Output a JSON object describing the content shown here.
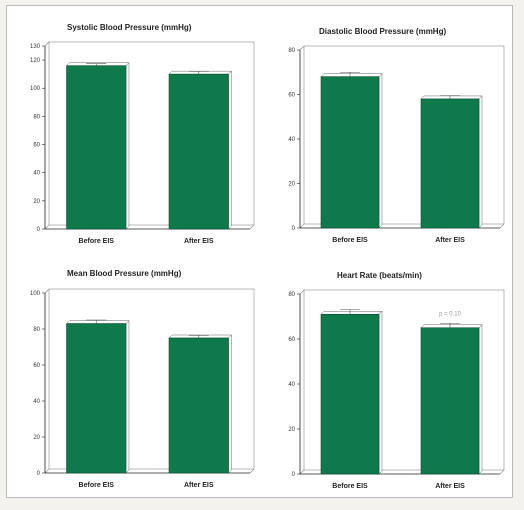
{
  "chart_data": [
    {
      "type": "bar",
      "title": "Systolic Blood Pressure (mmHg)",
      "categories": [
        "Before EIS",
        "After EIS"
      ],
      "values": [
        116,
        110
      ],
      "errors": [
        1.5,
        2
      ],
      "ylim": [
        0,
        130
      ],
      "yticks": [
        0,
        20,
        40,
        60,
        80,
        100,
        120,
        130
      ],
      "color": "#0e7a4c"
    },
    {
      "type": "bar",
      "title": "Diastolic Blood Pressure (mmHg)",
      "categories": [
        "Before EIS",
        "After EIS"
      ],
      "values": [
        68,
        58
      ],
      "errors": [
        2,
        1.5
      ],
      "ylim": [
        0,
        80
      ],
      "yticks": [
        0,
        20,
        40,
        60,
        80
      ],
      "color": "#0e7a4c"
    },
    {
      "type": "bar",
      "title": "Mean Blood Pressure (mmHg)",
      "categories": [
        "Before EIS",
        "After EIS"
      ],
      "values": [
        83,
        75
      ],
      "errors": [
        2,
        1.5
      ],
      "ylim": [
        0,
        100
      ],
      "yticks": [
        0,
        20,
        40,
        60,
        80,
        100
      ],
      "color": "#0e7a4c"
    },
    {
      "type": "bar",
      "title": "Heart Rate (beats/min)",
      "categories": [
        "Before EIS",
        "After EIS"
      ],
      "values": [
        71,
        65
      ],
      "errors": [
        2,
        2
      ],
      "ylim": [
        0,
        80
      ],
      "yticks": [
        0,
        20,
        40,
        60,
        80
      ],
      "annotation": "p = 0.10",
      "color": "#0e7a4c"
    }
  ]
}
